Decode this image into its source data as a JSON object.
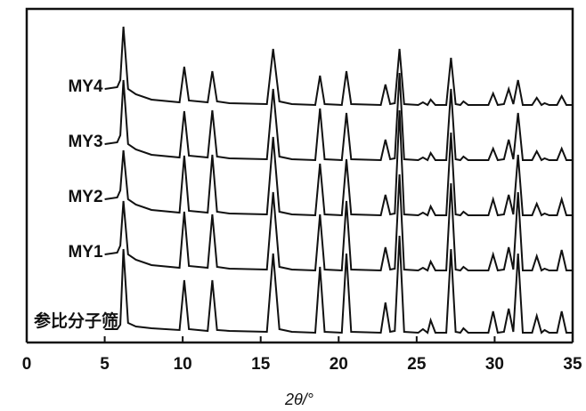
{
  "chart_data": {
    "type": "line",
    "x_label": "2θ/°",
    "x": [
      5.0,
      5.8,
      6.0,
      6.2,
      6.5,
      7,
      8,
      9.8,
      10.1,
      10.4,
      11.6,
      11.9,
      12.2,
      13,
      15.4,
      15.8,
      16.2,
      17,
      18.5,
      18.8,
      19.1,
      20.2,
      20.5,
      20.8,
      22.7,
      23.0,
      23.3,
      23.6,
      23.9,
      24.2,
      25.1,
      25.4,
      25.7,
      25.9,
      26.2,
      26.9,
      27.2,
      27.5,
      27.8,
      28.0,
      28.3,
      29.6,
      29.9,
      30.2,
      30.6,
      30.9,
      31.2,
      31.5,
      31.8,
      32.4,
      32.7,
      33.0,
      33.2,
      33.5,
      34.0,
      34.3,
      34.6,
      35
    ],
    "series": [
      {
        "name": "MY4",
        "color": "#111111",
        "values": [
          20,
          22,
          30,
          90,
          20,
          14,
          8,
          5,
          45,
          7,
          5,
          40,
          6,
          4,
          3,
          65,
          6,
          3,
          2,
          35,
          3,
          2,
          40,
          3,
          2,
          25,
          3,
          4,
          65,
          3,
          2,
          5,
          2,
          8,
          2,
          2,
          55,
          3,
          2,
          6,
          2,
          2,
          15,
          2,
          3,
          20,
          3,
          30,
          2,
          2,
          10,
          2,
          4,
          2,
          2,
          12,
          2,
          2
        ]
      },
      {
        "name": "MY3",
        "color": "#111111",
        "values": [
          20,
          22,
          30,
          92,
          20,
          14,
          8,
          5,
          57,
          7,
          5,
          58,
          6,
          4,
          3,
          82,
          6,
          3,
          2,
          60,
          3,
          2,
          55,
          3,
          2,
          25,
          3,
          4,
          100,
          3,
          2,
          5,
          2,
          10,
          2,
          2,
          82,
          3,
          2,
          6,
          2,
          2,
          15,
          2,
          3,
          25,
          3,
          55,
          2,
          2,
          12,
          2,
          4,
          2,
          2,
          15,
          2,
          2
        ]
      },
      {
        "name": "MY2",
        "color": "#111111",
        "values": [
          20,
          22,
          30,
          75,
          20,
          14,
          8,
          5,
          69,
          7,
          5,
          70,
          6,
          4,
          3,
          90,
          6,
          3,
          2,
          60,
          3,
          2,
          65,
          3,
          2,
          25,
          3,
          4,
          120,
          3,
          2,
          5,
          2,
          12,
          2,
          2,
          95,
          3,
          2,
          6,
          2,
          2,
          20,
          2,
          3,
          25,
          3,
          70,
          2,
          2,
          15,
          2,
          4,
          2,
          2,
          20,
          2,
          2
        ]
      },
      {
        "name": "MY1",
        "color": "#111111",
        "values": [
          20,
          22,
          30,
          80,
          20,
          14,
          8,
          5,
          68,
          7,
          5,
          65,
          6,
          4,
          3,
          90,
          6,
          3,
          2,
          65,
          3,
          2,
          80,
          3,
          2,
          28,
          3,
          4,
          110,
          3,
          2,
          5,
          2,
          12,
          2,
          2,
          100,
          3,
          2,
          6,
          2,
          2,
          20,
          2,
          3,
          28,
          3,
          90,
          2,
          2,
          18,
          2,
          4,
          2,
          2,
          25,
          2,
          2
        ]
      },
      {
        "name": "参比分子筛",
        "color": "#111111",
        "values": [
          5,
          5,
          10,
          95,
          12,
          8,
          6,
          4,
          60,
          5,
          3,
          60,
          4,
          3,
          2,
          90,
          5,
          2,
          1,
          75,
          2,
          1,
          90,
          2,
          1,
          35,
          2,
          3,
          110,
          2,
          1,
          5,
          1,
          15,
          1,
          1,
          95,
          2,
          1,
          6,
          1,
          1,
          25,
          1,
          2,
          28,
          2,
          90,
          1,
          1,
          20,
          1,
          4,
          1,
          1,
          25,
          1,
          1
        ]
      }
    ],
    "xlim": [
      0,
      35
    ],
    "xticks": [
      0,
      5,
      10,
      15,
      20,
      25,
      30,
      35
    ]
  }
}
